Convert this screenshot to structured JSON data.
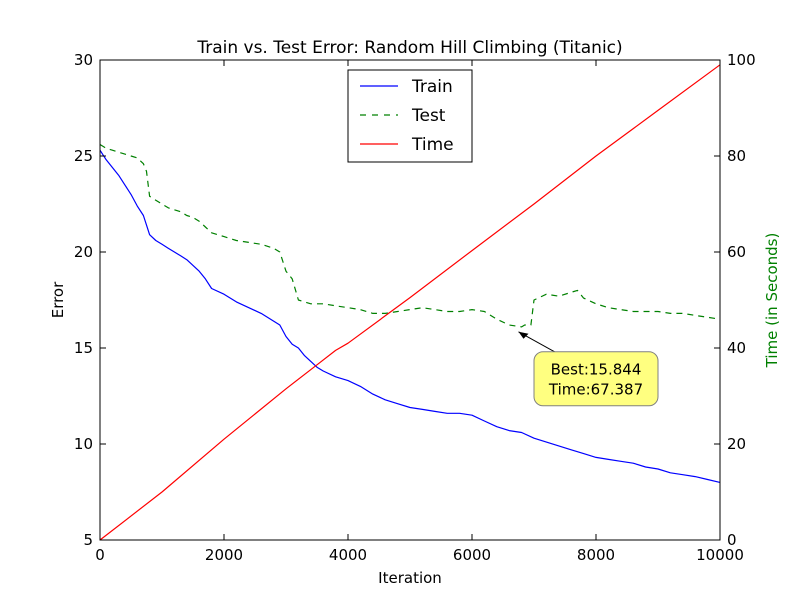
{
  "chart_data": {
    "type": "line",
    "title": "Train vs. Test Error: Random Hill Climbing (Titanic)",
    "xlabel": "Iteration",
    "ylabel": "Error",
    "y2label": "Time (in Seconds)",
    "xlim": [
      0,
      10000
    ],
    "ylim": [
      5,
      30
    ],
    "y2lim": [
      0,
      100
    ],
    "xticks": [
      "0",
      "2000",
      "4000",
      "6000",
      "8000",
      "10000"
    ],
    "yticks": [
      "5",
      "10",
      "15",
      "20",
      "25",
      "30"
    ],
    "y2ticks": [
      "0",
      "20",
      "40",
      "60",
      "80",
      "100"
    ],
    "grid": false,
    "legend_position": "top-center",
    "colors": {
      "train": "#0000ff",
      "test": "#008000",
      "time": "#ff0000",
      "y2label": "#008000",
      "annotation_fill": "#ffff80",
      "annotation_edge": "#808080"
    },
    "series": [
      {
        "name": "Train",
        "axis": "left",
        "style": "solid",
        "x": [
          0,
          100,
          200,
          300,
          400,
          500,
          600,
          700,
          750,
          800,
          900,
          1000,
          1100,
          1200,
          1300,
          1400,
          1500,
          1600,
          1700,
          1800,
          2000,
          2200,
          2400,
          2600,
          2800,
          2900,
          3000,
          3100,
          3200,
          3300,
          3400,
          3500,
          3600,
          3800,
          4000,
          4200,
          4400,
          4600,
          4800,
          5000,
          5200,
          5400,
          5600,
          5800,
          6000,
          6200,
          6400,
          6600,
          6800,
          7000,
          7200,
          7400,
          7600,
          7800,
          8000,
          8200,
          8400,
          8600,
          8800,
          9000,
          9200,
          9400,
          9600,
          9800,
          10000
        ],
        "values": [
          25.3,
          24.8,
          24.4,
          24.0,
          23.5,
          23.0,
          22.4,
          21.9,
          21.4,
          20.9,
          20.6,
          20.4,
          20.2,
          20.0,
          19.8,
          19.6,
          19.3,
          19.0,
          18.6,
          18.1,
          17.8,
          17.4,
          17.1,
          16.8,
          16.4,
          16.2,
          15.6,
          15.2,
          15.0,
          14.6,
          14.3,
          14.0,
          13.8,
          13.5,
          13.3,
          13.0,
          12.6,
          12.3,
          12.1,
          11.9,
          11.8,
          11.7,
          11.6,
          11.6,
          11.5,
          11.2,
          10.9,
          10.7,
          10.6,
          10.3,
          10.1,
          9.9,
          9.7,
          9.5,
          9.3,
          9.2,
          9.1,
          9.0,
          8.8,
          8.7,
          8.5,
          8.4,
          8.3,
          8.15,
          8.0
        ]
      },
      {
        "name": "Test",
        "axis": "left",
        "style": "dashed",
        "x": [
          0,
          100,
          200,
          300,
          400,
          500,
          600,
          700,
          750,
          800,
          900,
          1000,
          1100,
          1200,
          1300,
          1400,
          1500,
          1600,
          1700,
          1800,
          2000,
          2200,
          2400,
          2600,
          2800,
          2900,
          3000,
          3100,
          3200,
          3300,
          3400,
          3600,
          3800,
          4000,
          4200,
          4400,
          4600,
          4800,
          5000,
          5200,
          5400,
          5600,
          5800,
          6000,
          6200,
          6400,
          6600,
          6800,
          6850,
          6950,
          7000,
          7200,
          7400,
          7600,
          7700,
          7800,
          8000,
          8200,
          8400,
          8600,
          8800,
          9000,
          9200,
          9400,
          9600,
          9800,
          10000
        ],
        "values": [
          25.6,
          25.4,
          25.3,
          25.2,
          25.1,
          25.0,
          24.9,
          24.6,
          24.2,
          22.9,
          22.7,
          22.5,
          22.3,
          22.2,
          22.1,
          21.9,
          21.8,
          21.6,
          21.3,
          21.0,
          20.8,
          20.6,
          20.5,
          20.4,
          20.2,
          20.0,
          19.0,
          18.6,
          17.5,
          17.4,
          17.3,
          17.3,
          17.2,
          17.1,
          17.0,
          16.8,
          16.8,
          16.9,
          17.0,
          17.1,
          17.0,
          16.9,
          16.9,
          17.0,
          16.9,
          16.5,
          16.2,
          16.1,
          16.2,
          16.2,
          17.5,
          17.8,
          17.7,
          17.9,
          18.0,
          17.6,
          17.3,
          17.1,
          17.0,
          16.9,
          16.9,
          16.9,
          16.8,
          16.8,
          16.7,
          16.6,
          16.5
        ]
      },
      {
        "name": "Time",
        "axis": "right",
        "style": "solid",
        "x": [
          0,
          1000,
          2000,
          3000,
          3500,
          3800,
          4000,
          5000,
          6000,
          7000,
          8000,
          9000,
          10000
        ],
        "values": [
          0,
          10,
          21,
          31.5,
          36.5,
          39.5,
          41,
          50.5,
          60.3,
          70,
          80,
          89.5,
          99
        ]
      }
    ],
    "annotation": {
      "line1": "Best:15.844",
      "line2": "Time:67.387",
      "point_x": 6750,
      "point_y": 15.844,
      "box_x": 8000,
      "box_y": 13.4
    }
  }
}
